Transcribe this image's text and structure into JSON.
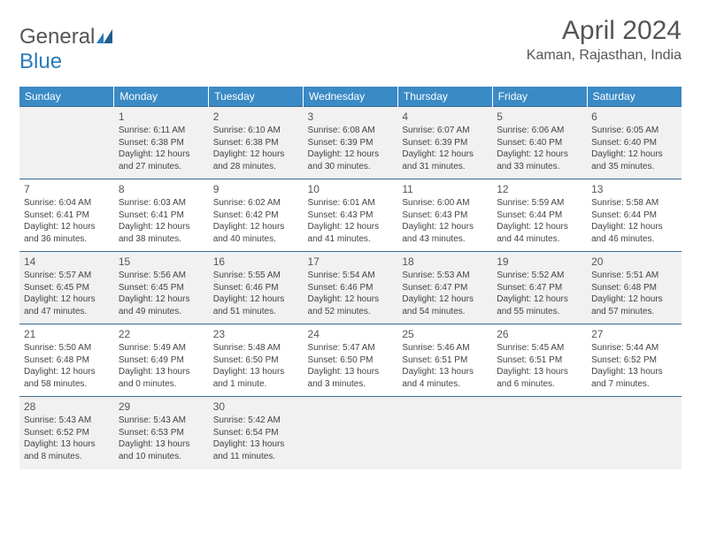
{
  "logo": {
    "word1": "General",
    "word2": "Blue"
  },
  "title": "April 2024",
  "location": "Kaman, Rajasthan, India",
  "colors": {
    "header_bg": "#3a8ac5",
    "row_border": "#3a6a93",
    "shaded_bg": "#f1f1f1",
    "text": "#444444",
    "title_text": "#555555"
  },
  "day_headers": [
    "Sunday",
    "Monday",
    "Tuesday",
    "Wednesday",
    "Thursday",
    "Friday",
    "Saturday"
  ],
  "weeks": [
    [
      {
        "day": "",
        "lines": [
          "",
          "",
          ""
        ],
        "shaded": true
      },
      {
        "day": "1",
        "lines": [
          "Sunrise: 6:11 AM",
          "Sunset: 6:38 PM",
          "Daylight: 12 hours and 27 minutes."
        ],
        "shaded": true
      },
      {
        "day": "2",
        "lines": [
          "Sunrise: 6:10 AM",
          "Sunset: 6:38 PM",
          "Daylight: 12 hours and 28 minutes."
        ],
        "shaded": true
      },
      {
        "day": "3",
        "lines": [
          "Sunrise: 6:08 AM",
          "Sunset: 6:39 PM",
          "Daylight: 12 hours and 30 minutes."
        ],
        "shaded": true
      },
      {
        "day": "4",
        "lines": [
          "Sunrise: 6:07 AM",
          "Sunset: 6:39 PM",
          "Daylight: 12 hours and 31 minutes."
        ],
        "shaded": true
      },
      {
        "day": "5",
        "lines": [
          "Sunrise: 6:06 AM",
          "Sunset: 6:40 PM",
          "Daylight: 12 hours and 33 minutes."
        ],
        "shaded": true
      },
      {
        "day": "6",
        "lines": [
          "Sunrise: 6:05 AM",
          "Sunset: 6:40 PM",
          "Daylight: 12 hours and 35 minutes."
        ],
        "shaded": true
      }
    ],
    [
      {
        "day": "7",
        "lines": [
          "Sunrise: 6:04 AM",
          "Sunset: 6:41 PM",
          "Daylight: 12 hours and 36 minutes."
        ],
        "shaded": false
      },
      {
        "day": "8",
        "lines": [
          "Sunrise: 6:03 AM",
          "Sunset: 6:41 PM",
          "Daylight: 12 hours and 38 minutes."
        ],
        "shaded": false
      },
      {
        "day": "9",
        "lines": [
          "Sunrise: 6:02 AM",
          "Sunset: 6:42 PM",
          "Daylight: 12 hours and 40 minutes."
        ],
        "shaded": false
      },
      {
        "day": "10",
        "lines": [
          "Sunrise: 6:01 AM",
          "Sunset: 6:43 PM",
          "Daylight: 12 hours and 41 minutes."
        ],
        "shaded": false
      },
      {
        "day": "11",
        "lines": [
          "Sunrise: 6:00 AM",
          "Sunset: 6:43 PM",
          "Daylight: 12 hours and 43 minutes."
        ],
        "shaded": false
      },
      {
        "day": "12",
        "lines": [
          "Sunrise: 5:59 AM",
          "Sunset: 6:44 PM",
          "Daylight: 12 hours and 44 minutes."
        ],
        "shaded": false
      },
      {
        "day": "13",
        "lines": [
          "Sunrise: 5:58 AM",
          "Sunset: 6:44 PM",
          "Daylight: 12 hours and 46 minutes."
        ],
        "shaded": false
      }
    ],
    [
      {
        "day": "14",
        "lines": [
          "Sunrise: 5:57 AM",
          "Sunset: 6:45 PM",
          "Daylight: 12 hours and 47 minutes."
        ],
        "shaded": true
      },
      {
        "day": "15",
        "lines": [
          "Sunrise: 5:56 AM",
          "Sunset: 6:45 PM",
          "Daylight: 12 hours and 49 minutes."
        ],
        "shaded": true
      },
      {
        "day": "16",
        "lines": [
          "Sunrise: 5:55 AM",
          "Sunset: 6:46 PM",
          "Daylight: 12 hours and 51 minutes."
        ],
        "shaded": true
      },
      {
        "day": "17",
        "lines": [
          "Sunrise: 5:54 AM",
          "Sunset: 6:46 PM",
          "Daylight: 12 hours and 52 minutes."
        ],
        "shaded": true
      },
      {
        "day": "18",
        "lines": [
          "Sunrise: 5:53 AM",
          "Sunset: 6:47 PM",
          "Daylight: 12 hours and 54 minutes."
        ],
        "shaded": true
      },
      {
        "day": "19",
        "lines": [
          "Sunrise: 5:52 AM",
          "Sunset: 6:47 PM",
          "Daylight: 12 hours and 55 minutes."
        ],
        "shaded": true
      },
      {
        "day": "20",
        "lines": [
          "Sunrise: 5:51 AM",
          "Sunset: 6:48 PM",
          "Daylight: 12 hours and 57 minutes."
        ],
        "shaded": true
      }
    ],
    [
      {
        "day": "21",
        "lines": [
          "Sunrise: 5:50 AM",
          "Sunset: 6:48 PM",
          "Daylight: 12 hours and 58 minutes."
        ],
        "shaded": false
      },
      {
        "day": "22",
        "lines": [
          "Sunrise: 5:49 AM",
          "Sunset: 6:49 PM",
          "Daylight: 13 hours and 0 minutes."
        ],
        "shaded": false
      },
      {
        "day": "23",
        "lines": [
          "Sunrise: 5:48 AM",
          "Sunset: 6:50 PM",
          "Daylight: 13 hours and 1 minute."
        ],
        "shaded": false
      },
      {
        "day": "24",
        "lines": [
          "Sunrise: 5:47 AM",
          "Sunset: 6:50 PM",
          "Daylight: 13 hours and 3 minutes."
        ],
        "shaded": false
      },
      {
        "day": "25",
        "lines": [
          "Sunrise: 5:46 AM",
          "Sunset: 6:51 PM",
          "Daylight: 13 hours and 4 minutes."
        ],
        "shaded": false
      },
      {
        "day": "26",
        "lines": [
          "Sunrise: 5:45 AM",
          "Sunset: 6:51 PM",
          "Daylight: 13 hours and 6 minutes."
        ],
        "shaded": false
      },
      {
        "day": "27",
        "lines": [
          "Sunrise: 5:44 AM",
          "Sunset: 6:52 PM",
          "Daylight: 13 hours and 7 minutes."
        ],
        "shaded": false
      }
    ],
    [
      {
        "day": "28",
        "lines": [
          "Sunrise: 5:43 AM",
          "Sunset: 6:52 PM",
          "Daylight: 13 hours and 8 minutes."
        ],
        "shaded": true
      },
      {
        "day": "29",
        "lines": [
          "Sunrise: 5:43 AM",
          "Sunset: 6:53 PM",
          "Daylight: 13 hours and 10 minutes."
        ],
        "shaded": true
      },
      {
        "day": "30",
        "lines": [
          "Sunrise: 5:42 AM",
          "Sunset: 6:54 PM",
          "Daylight: 13 hours and 11 minutes."
        ],
        "shaded": true
      },
      {
        "day": "",
        "lines": [
          "",
          "",
          ""
        ],
        "shaded": true
      },
      {
        "day": "",
        "lines": [
          "",
          "",
          ""
        ],
        "shaded": true
      },
      {
        "day": "",
        "lines": [
          "",
          "",
          ""
        ],
        "shaded": true
      },
      {
        "day": "",
        "lines": [
          "",
          "",
          ""
        ],
        "shaded": true
      }
    ]
  ]
}
